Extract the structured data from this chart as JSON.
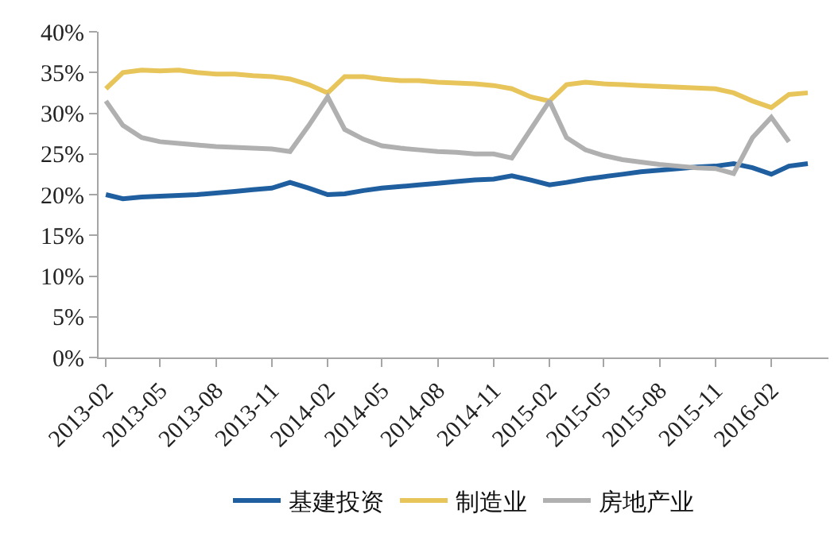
{
  "chart_data": {
    "type": "line",
    "x": [
      "2013-02",
      "2013-03",
      "2013-04",
      "2013-05",
      "2013-06",
      "2013-07",
      "2013-08",
      "2013-09",
      "2013-10",
      "2013-11",
      "2013-12",
      "2014-01",
      "2014-02",
      "2014-03",
      "2014-04",
      "2014-05",
      "2014-06",
      "2014-07",
      "2014-08",
      "2014-09",
      "2014-10",
      "2014-11",
      "2014-12",
      "2015-01",
      "2015-02",
      "2015-03",
      "2015-04",
      "2015-05",
      "2015-06",
      "2015-07",
      "2015-08",
      "2015-09",
      "2015-10",
      "2015-11",
      "2015-12",
      "2016-01",
      "2016-02",
      "2016-03",
      "2016-04"
    ],
    "series": [
      {
        "name": "基建投资",
        "color": "#1f5fa0",
        "values": [
          20.0,
          19.5,
          19.7,
          19.8,
          19.9,
          20.0,
          20.2,
          20.4,
          20.6,
          20.8,
          21.5,
          20.8,
          20.0,
          20.1,
          20.5,
          20.8,
          21.0,
          21.2,
          21.4,
          21.6,
          21.8,
          21.9,
          22.3,
          21.8,
          21.2,
          21.5,
          21.9,
          22.2,
          22.5,
          22.8,
          23.0,
          23.2,
          23.4,
          23.5,
          23.8,
          23.3,
          22.5,
          23.5,
          23.8
        ]
      },
      {
        "name": "制造业",
        "color": "#e8c55a",
        "values": [
          33.0,
          35.0,
          35.3,
          35.2,
          35.3,
          35.0,
          34.8,
          34.8,
          34.6,
          34.5,
          34.2,
          33.5,
          32.5,
          34.5,
          34.5,
          34.2,
          34.0,
          34.0,
          33.8,
          33.7,
          33.6,
          33.4,
          33.0,
          32.0,
          31.5,
          33.5,
          33.8,
          33.6,
          33.5,
          33.4,
          33.3,
          33.2,
          33.1,
          33.0,
          32.5,
          31.5,
          30.7,
          32.3,
          32.5
        ]
      },
      {
        "name": "房地产业",
        "color": "#b0b0b0",
        "values": [
          31.5,
          28.5,
          27.0,
          26.5,
          26.3,
          26.1,
          25.9,
          25.8,
          25.7,
          25.6,
          25.3,
          28.5,
          32.0,
          28.0,
          26.8,
          26.0,
          25.7,
          25.5,
          25.3,
          25.2,
          25.0,
          25.0,
          24.5,
          28.0,
          31.5,
          27.0,
          25.5,
          24.8,
          24.3,
          24.0,
          23.7,
          23.5,
          23.3,
          23.2,
          22.6,
          27.0,
          29.5,
          26.5,
          null
        ]
      }
    ],
    "xlim": [
      "2013-01-20",
      "2016-05-05"
    ],
    "xticks": [
      "2013-02",
      "2013-05",
      "2013-08",
      "2013-11",
      "2014-02",
      "2014-05",
      "2014-08",
      "2014-11",
      "2015-02",
      "2015-05",
      "2015-08",
      "2015-11",
      "2016-02"
    ],
    "ylim": [
      0,
      40
    ],
    "yticks": [
      {
        "value": 0,
        "label": "0%"
      },
      {
        "value": 5,
        "label": "5%"
      },
      {
        "value": 10,
        "label": "10%"
      },
      {
        "value": 15,
        "label": "15%"
      },
      {
        "value": 20,
        "label": "20%"
      },
      {
        "value": 25,
        "label": "25%"
      },
      {
        "value": 30,
        "label": "30%"
      },
      {
        "value": 35,
        "label": "35%"
      },
      {
        "value": 40,
        "label": "40%"
      }
    ],
    "grid": false,
    "legend": "bottom",
    "marker": "none",
    "line_style": "solid"
  }
}
